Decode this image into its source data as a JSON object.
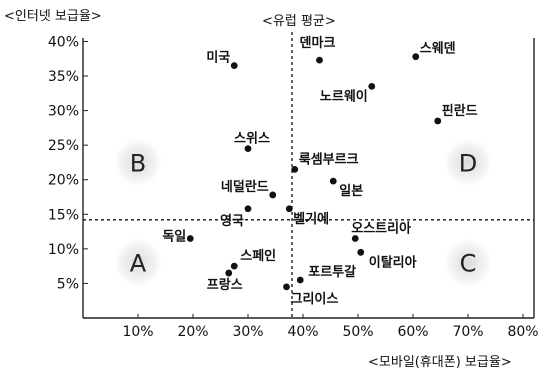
{
  "chart_data": {
    "type": "scatter",
    "y_axis_label": "<인터넷 보급율>",
    "x_axis_label": "<모바일(휴대폰) 보급율>",
    "avg_label": "<유럽 평균>",
    "xlim": [
      0,
      82
    ],
    "ylim": [
      0,
      40.5
    ],
    "x_ticks": [
      10,
      20,
      30,
      40,
      50,
      60,
      70,
      80
    ],
    "x_tick_labels": [
      "10%",
      "20%",
      "30%",
      "40%",
      "50%",
      "60%",
      "70%",
      "80%"
    ],
    "y_ticks": [
      5,
      10,
      15,
      20,
      25,
      30,
      35,
      40
    ],
    "y_tick_labels": [
      "5%",
      "10%",
      "15%",
      "20%",
      "25%",
      "30%",
      "35%",
      "40%"
    ],
    "avg_x": 38,
    "avg_y": 14.2,
    "quadrants": [
      "A",
      "B",
      "C",
      "D"
    ],
    "points": [
      {
        "name": "미국",
        "x": 27.5,
        "y": 36.5
      },
      {
        "name": "덴마크",
        "x": 43,
        "y": 37.3
      },
      {
        "name": "스웨덴",
        "x": 60.5,
        "y": 37.8
      },
      {
        "name": "노르웨이",
        "x": 52.5,
        "y": 33.5
      },
      {
        "name": "핀란드",
        "x": 64.5,
        "y": 28.5
      },
      {
        "name": "스위스",
        "x": 30,
        "y": 24.5
      },
      {
        "name": "룩셈부르크",
        "x": 38.5,
        "y": 21.5
      },
      {
        "name": "일본",
        "x": 45.5,
        "y": 19.8
      },
      {
        "name": "네덜란드",
        "x": 34.5,
        "y": 17.8
      },
      {
        "name": "영국",
        "x": 30,
        "y": 15.8
      },
      {
        "name": "벨기에",
        "x": 37.5,
        "y": 15.8
      },
      {
        "name": "독일",
        "x": 19.5,
        "y": 11.5
      },
      {
        "name": "오스트리아",
        "x": 49.5,
        "y": 11.5
      },
      {
        "name": "이탈리아",
        "x": 50.5,
        "y": 9.5
      },
      {
        "name": "스페인",
        "x": 27.5,
        "y": 7.5
      },
      {
        "name": "프랑스",
        "x": 26.5,
        "y": 6.5
      },
      {
        "name": "포르투갈",
        "x": 39.5,
        "y": 5.5
      },
      {
        "name": "그리이스",
        "x": 37,
        "y": 4.5
      }
    ]
  }
}
